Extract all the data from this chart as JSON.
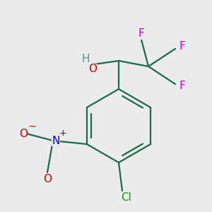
{
  "background_color": "#ebebeb",
  "bond_color": "#1a6b4a",
  "atom_colors": {
    "H": "#5a9090",
    "O": "#cc0000",
    "F": "#cc00cc",
    "N": "#0000cc",
    "Cl": "#00aa00"
  },
  "figsize": [
    3.0,
    3.0
  ],
  "dpi": 100
}
